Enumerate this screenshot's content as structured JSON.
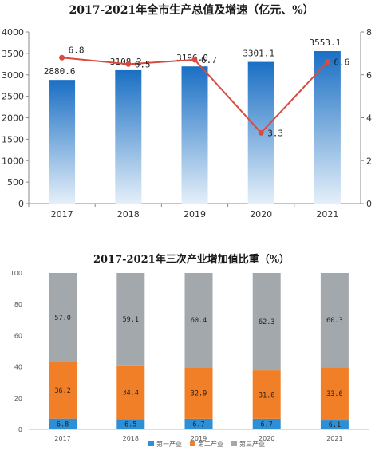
{
  "chart_data": [
    {
      "type": "bar+line",
      "title": "2017-2021年全市生产总值及增速（亿元、%）",
      "categories": [
        "2017",
        "2018",
        "2019",
        "2020",
        "2021"
      ],
      "series": [
        {
          "type": "bar",
          "axis": "left",
          "values": [
            2880.6,
            3108.2,
            3196.0,
            3301.1,
            3553.1
          ],
          "labels": [
            "2880.6",
            "3108.2",
            "3196.0",
            "3301.1",
            "3553.1"
          ]
        },
        {
          "type": "line",
          "axis": "right",
          "values": [
            6.8,
            6.5,
            6.7,
            3.3,
            6.6
          ],
          "labels": [
            "6.8",
            "6.5",
            "6.7",
            "3.3",
            "6.6"
          ]
        }
      ],
      "ylim_left": [
        0,
        4000
      ],
      "ylim_right": [
        0,
        8
      ],
      "yticks_left": [
        "0",
        "500",
        "1000",
        "1500",
        "2000",
        "2500",
        "3000",
        "3500",
        "4000"
      ],
      "yticks_right": [
        "0",
        "2",
        "4",
        "6",
        "8"
      ],
      "colors": {
        "bar_top": "#1a6fc4",
        "bar_bottom": "#dbe9f7",
        "line": "#d94a3f"
      }
    },
    {
      "type": "stacked-bar",
      "title": "2017-2021年三次产业增加值比重（%）",
      "categories": [
        "2017",
        "2018",
        "2019",
        "2020",
        "2021"
      ],
      "series": [
        {
          "name": "第一产业",
          "values": [
            6.8,
            6.5,
            6.7,
            6.7,
            6.1
          ],
          "labels": [
            "6.8",
            "6.5",
            "6.7",
            "6.7",
            "6.1"
          ],
          "color": "#2d8fd6"
        },
        {
          "name": "第二产业",
          "values": [
            36.2,
            34.4,
            32.9,
            31.0,
            33.6
          ],
          "labels": [
            "36.2",
            "34.4",
            "32.9",
            "31.0",
            "33.6"
          ],
          "color": "#f07f27"
        },
        {
          "name": "第三产业",
          "values": [
            57.0,
            59.1,
            60.4,
            62.3,
            60.3
          ],
          "labels": [
            "57.0",
            "59.1",
            "60.4",
            "62.3",
            "60.3"
          ],
          "color": "#a3a8ad"
        }
      ],
      "ylim": [
        0,
        100
      ],
      "yticks": [
        "0",
        "20",
        "40",
        "60",
        "80",
        "100"
      ],
      "legend": "bottom"
    }
  ]
}
